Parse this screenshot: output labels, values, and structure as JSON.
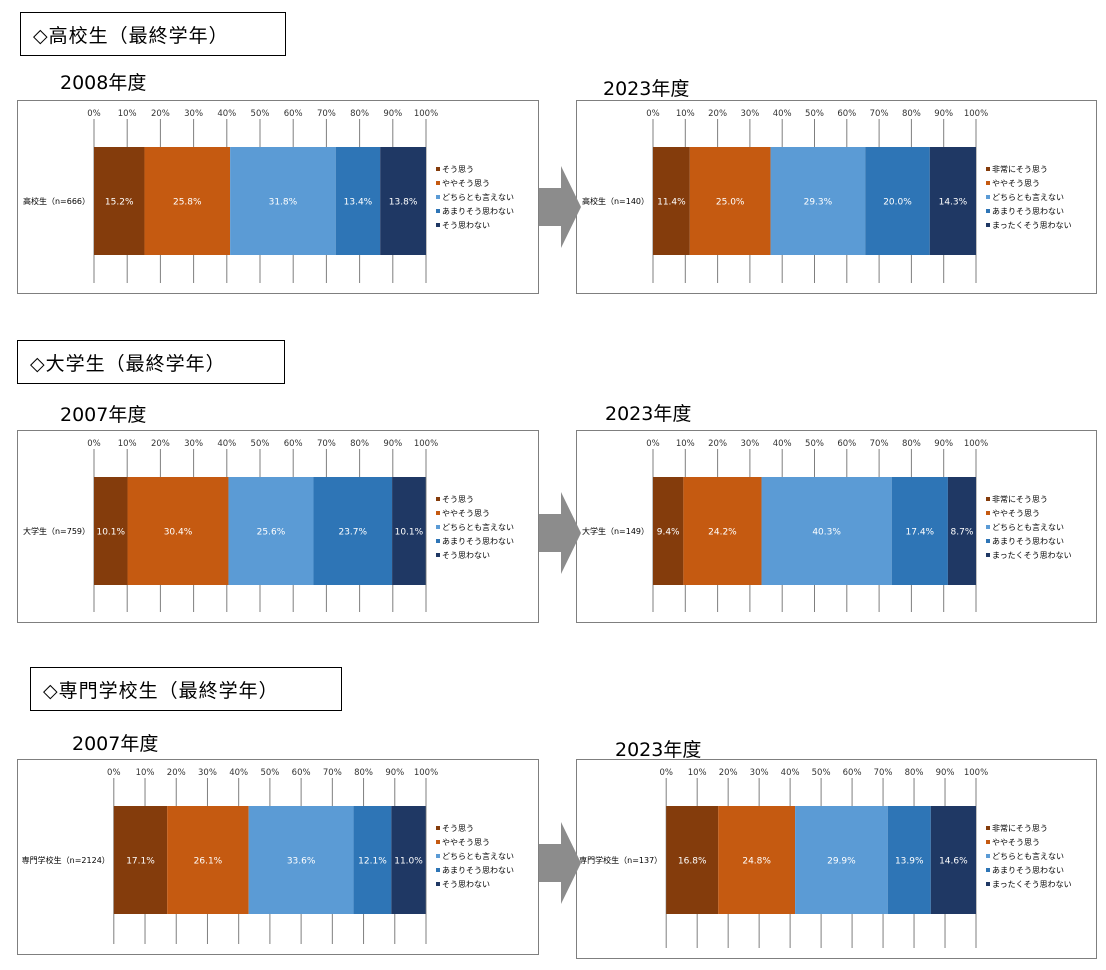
{
  "colors": [
    "#843c0c",
    "#c55a11",
    "#5b9bd5",
    "#2e75b6",
    "#1f3864"
  ],
  "sections": [
    {
      "title": "◇高校生（最終学年）",
      "left": {
        "year": "2008年度",
        "chart_data": {
          "type": "bar",
          "orientation": "horizontal-stacked-100",
          "xlim": [
            0,
            100
          ],
          "ticks": [
            "0%",
            "10%",
            "20%",
            "30%",
            "40%",
            "50%",
            "60%",
            "70%",
            "80%",
            "90%",
            "100%"
          ],
          "categories": [
            "高校生（n=666）"
          ],
          "series": [
            {
              "name": "そう思う",
              "values": [
                15.2
              ],
              "label": "15.2%"
            },
            {
              "name": "ややそう思う",
              "values": [
                25.8
              ],
              "label": "25.8%"
            },
            {
              "name": "どちらとも言えない",
              "values": [
                31.8
              ],
              "label": "31.8%"
            },
            {
              "name": "あまりそう思わない",
              "values": [
                13.4
              ],
              "label": "13.4%"
            },
            {
              "name": "そう思わない",
              "values": [
                13.8
              ],
              "label": "13.8%"
            }
          ]
        }
      },
      "right": {
        "year": "2023年度",
        "chart_data": {
          "type": "bar",
          "orientation": "horizontal-stacked-100",
          "xlim": [
            0,
            100
          ],
          "ticks": [
            "0%",
            "10%",
            "20%",
            "30%",
            "40%",
            "50%",
            "60%",
            "70%",
            "80%",
            "90%",
            "100%"
          ],
          "categories": [
            "高校生（n=140）"
          ],
          "series": [
            {
              "name": "非常にそう思う",
              "values": [
                11.4
              ],
              "label": "11.4%"
            },
            {
              "name": "ややそう思う",
              "values": [
                25.0
              ],
              "label": "25.0%"
            },
            {
              "name": "どちらとも言えない",
              "values": [
                29.3
              ],
              "label": "29.3%"
            },
            {
              "name": "あまりそう思わない",
              "values": [
                20.0
              ],
              "label": "20.0%"
            },
            {
              "name": "まったくそう思わない",
              "values": [
                14.3
              ],
              "label": "14.3%"
            }
          ]
        }
      }
    },
    {
      "title": "◇大学生（最終学年）",
      "left": {
        "year": "2007年度",
        "chart_data": {
          "type": "bar",
          "orientation": "horizontal-stacked-100",
          "xlim": [
            0,
            100
          ],
          "ticks": [
            "0%",
            "10%",
            "20%",
            "30%",
            "40%",
            "50%",
            "60%",
            "70%",
            "80%",
            "90%",
            "100%"
          ],
          "categories": [
            "大学生（n=759）"
          ],
          "series": [
            {
              "name": "そう思う",
              "values": [
                10.1
              ],
              "label": "10.1%"
            },
            {
              "name": "ややそう思う",
              "values": [
                30.4
              ],
              "label": "30.4%"
            },
            {
              "name": "どちらとも言えない",
              "values": [
                25.6
              ],
              "label": "25.6%"
            },
            {
              "name": "あまりそう思わない",
              "values": [
                23.7
              ],
              "label": "23.7%"
            },
            {
              "name": "そう思わない",
              "values": [
                10.1
              ],
              "label": "10.1%"
            }
          ]
        }
      },
      "right": {
        "year": "2023年度",
        "chart_data": {
          "type": "bar",
          "orientation": "horizontal-stacked-100",
          "xlim": [
            0,
            100
          ],
          "ticks": [
            "0%",
            "10%",
            "20%",
            "30%",
            "40%",
            "50%",
            "60%",
            "70%",
            "80%",
            "90%",
            "100%"
          ],
          "categories": [
            "大学生（n=149）"
          ],
          "series": [
            {
              "name": "非常にそう思う",
              "values": [
                9.4
              ],
              "label": "9.4%"
            },
            {
              "name": "ややそう思う",
              "values": [
                24.2
              ],
              "label": "24.2%"
            },
            {
              "name": "どちらとも言えない",
              "values": [
                40.3
              ],
              "label": "40.3%"
            },
            {
              "name": "あまりそう思わない",
              "values": [
                17.4
              ],
              "label": "17.4%"
            },
            {
              "name": "まったくそう思わない",
              "values": [
                8.7
              ],
              "label": "8.7%"
            }
          ]
        }
      }
    },
    {
      "title": "◇専門学校生（最終学年）",
      "left": {
        "year": "2007年度",
        "chart_data": {
          "type": "bar",
          "orientation": "horizontal-stacked-100",
          "xlim": [
            0,
            100
          ],
          "ticks": [
            "0%",
            "10%",
            "20%",
            "30%",
            "40%",
            "50%",
            "60%",
            "70%",
            "80%",
            "90%",
            "100%"
          ],
          "categories": [
            "専門学校生（n=2124）"
          ],
          "series": [
            {
              "name": "そう思う",
              "values": [
                17.1
              ],
              "label": "17.1%"
            },
            {
              "name": "ややそう思う",
              "values": [
                26.1
              ],
              "label": "26.1%"
            },
            {
              "name": "どちらとも言えない",
              "values": [
                33.6
              ],
              "label": "33.6%"
            },
            {
              "name": "あまりそう思わない",
              "values": [
                12.1
              ],
              "label": "12.1%"
            },
            {
              "name": "そう思わない",
              "values": [
                11.0
              ],
              "label": "11.0%"
            }
          ]
        }
      },
      "right": {
        "year": "2023年度",
        "chart_data": {
          "type": "bar",
          "orientation": "horizontal-stacked-100",
          "xlim": [
            0,
            100
          ],
          "ticks": [
            "0%",
            "10%",
            "20%",
            "30%",
            "40%",
            "50%",
            "60%",
            "70%",
            "80%",
            "90%",
            "100%"
          ],
          "categories": [
            "専門学校生（n=137）"
          ],
          "series": [
            {
              "name": "非常にそう思う",
              "values": [
                16.8
              ],
              "label": "16.8%"
            },
            {
              "name": "ややそう思う",
              "values": [
                24.8
              ],
              "label": "24.8%"
            },
            {
              "name": "どちらとも言えない",
              "values": [
                29.9
              ],
              "label": "29.9%"
            },
            {
              "name": "あまりそう思わない",
              "values": [
                13.9
              ],
              "label": "13.9%"
            },
            {
              "name": "まったくそう思わない",
              "values": [
                14.6
              ],
              "label": "14.6%"
            }
          ]
        }
      }
    }
  ]
}
